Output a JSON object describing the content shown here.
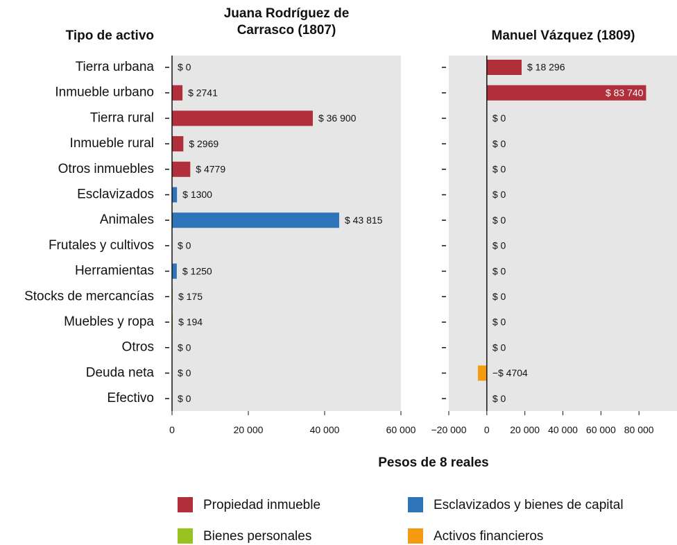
{
  "chart_data": {
    "type": "bar",
    "orientation": "horizontal",
    "category_title": "Tipo de activo",
    "xlabel": "Pesos de 8 reales",
    "categories": [
      "Tierra urbana",
      "Inmueble urbano",
      "Tierra rural",
      "Inmueble rural",
      "Otros inmuebles",
      "Esclavizados",
      "Animales",
      "Frutales y cultivos",
      "Herramientas",
      "Stocks de mercancías",
      "Muebles y ropa",
      "Otros",
      "Deuda neta",
      "Efectivo"
    ],
    "colors": [
      "#b02f3a",
      "#b02f3a",
      "#b02f3a",
      "#b02f3a",
      "#b02f3a",
      "#2f74b8",
      "#2f74b8",
      "#98c21f",
      "#2f74b8",
      "#98c21f",
      "#98c21f",
      "#98c21f",
      "#f39c12",
      "#f39c12"
    ],
    "panels": [
      {
        "title": "Juana Rodríguez de Carrasco (1807)",
        "values": [
          0,
          2741,
          36900,
          2969,
          4779,
          1300,
          43815,
          0,
          1250,
          175,
          194,
          0,
          0,
          0
        ],
        "value_labels": [
          "$ 0",
          "$ 2741",
          "$ 36 900",
          "$ 2969",
          "$ 4779",
          "$ 1300",
          "$ 43 815",
          "$ 0",
          "$ 1250",
          "$ 175",
          "$ 194",
          "$ 0",
          "$ 0",
          "$ 0"
        ],
        "xlim": [
          0,
          60000
        ],
        "xticks": [
          0,
          {
            "value": 20000,
            "label": "20 000"
          },
          {
            "value": 40000,
            "label": "40 000"
          },
          {
            "value": 60000,
            "label": "60 000"
          }
        ]
      },
      {
        "title": "Manuel Vázquez (1809)",
        "values": [
          18296,
          83740,
          0,
          0,
          0,
          0,
          0,
          0,
          0,
          0,
          0,
          0,
          -4704,
          0
        ],
        "value_labels": [
          "$ 18 296",
          "$ 83 740",
          "$ 0",
          "$ 0",
          "$ 0",
          "$ 0",
          "$ 0",
          "$ 0",
          "$ 0",
          "$ 0",
          "$ 0",
          "$ 0",
          "−$ 4704",
          "$ 0"
        ],
        "xlim": [
          -20000,
          100000
        ],
        "xticks": [
          {
            "value": -20000,
            "label": "−20 000"
          },
          0,
          {
            "value": 20000,
            "label": "20 000"
          },
          {
            "value": 40000,
            "label": "40 000"
          },
          {
            "value": 60000,
            "label": "60 000"
          },
          {
            "value": 80000,
            "label": "80 000"
          }
        ]
      }
    ],
    "legend": [
      {
        "name": "Propiedad inmueble",
        "color": "#b02f3a"
      },
      {
        "name": "Esclavizados y bienes de capital",
        "color": "#2f74b8"
      },
      {
        "name": "Bienes personales",
        "color": "#98c21f"
      },
      {
        "name": "Activos financieros",
        "color": "#f39c12"
      }
    ]
  }
}
